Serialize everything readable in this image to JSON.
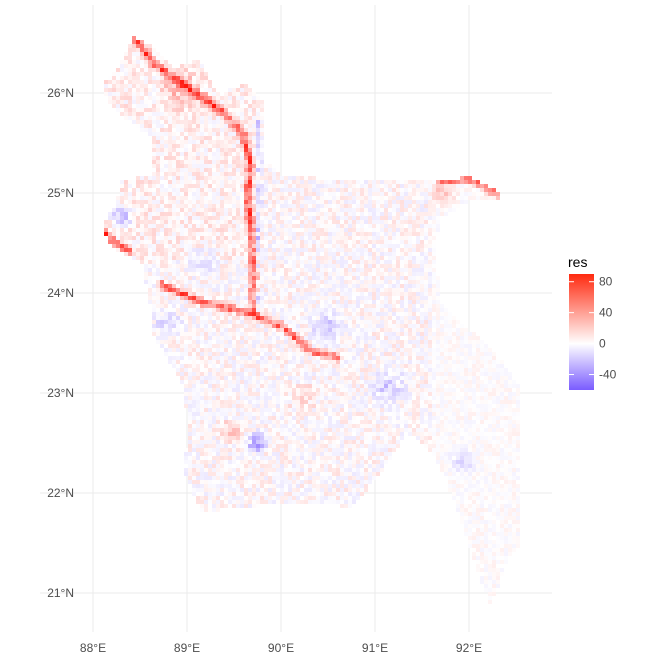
{
  "map": {
    "type": "raster-heatmap",
    "x_axis": {
      "min": 87.95,
      "max": 92.8,
      "ticks": [
        88,
        89,
        90,
        91,
        92
      ],
      "tick_labels": [
        "88°E",
        "89°E",
        "90°E",
        "91°E",
        "92°E"
      ]
    },
    "y_axis": {
      "min": 20.85,
      "max": 26.85,
      "ticks": [
        21,
        22,
        23,
        24,
        25,
        26
      ],
      "tick_labels": [
        "21°N",
        "22°N",
        "23°N",
        "24°N",
        "25°N",
        "26°N"
      ]
    },
    "grid": true,
    "grid_color": "#ebebeb"
  },
  "legend": {
    "title": "res",
    "position": "right",
    "ticks": [
      80,
      40,
      0,
      -40
    ],
    "tick_labels": [
      "80",
      "40",
      "0",
      "-40"
    ],
    "range": [
      -60,
      90
    ],
    "colors": {
      "high": "#ff0000",
      "mid": "#ffffff",
      "low": "#7a5cff"
    }
  }
}
